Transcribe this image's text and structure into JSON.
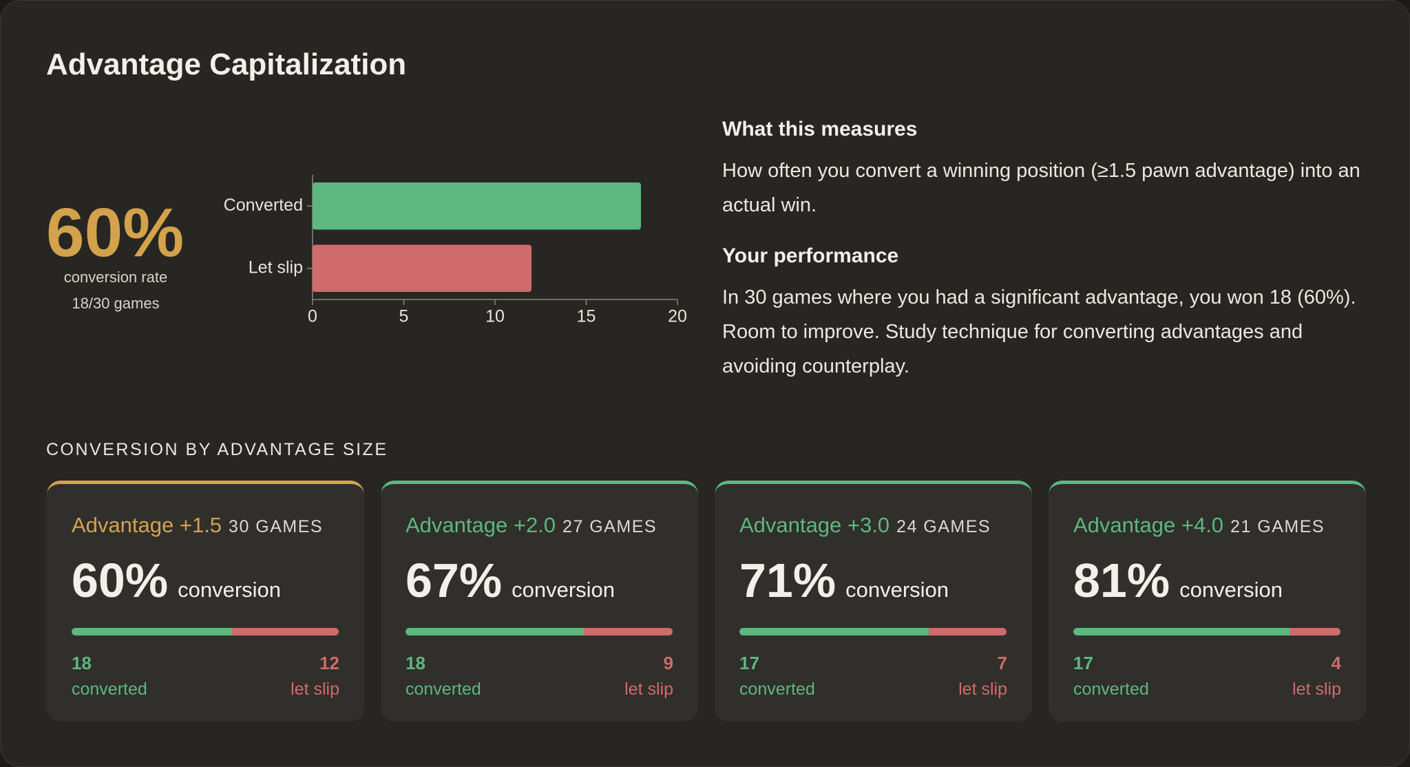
{
  "header": {
    "title": "Advantage Capitalization"
  },
  "summary": {
    "rate": "60%",
    "caption": "conversion rate",
    "detail": "18/30 games"
  },
  "chart_data": {
    "type": "bar",
    "orientation": "horizontal",
    "categories": [
      "Converted",
      "Let slip"
    ],
    "values": [
      18,
      12
    ],
    "colors": [
      "#5cb87f",
      "#d06b6b"
    ],
    "xlim": [
      0,
      20
    ],
    "xticks": [
      0,
      5,
      10,
      15,
      20
    ]
  },
  "explanation": {
    "measures_heading": "What this measures",
    "measures_text": "How often you convert a winning position (≥1.5 pawn advantage) into an actual win.",
    "performance_heading": "Your performance",
    "performance_text": "In 30 games where you had a significant advantage, you won 18 (60%). Room to improve. Study technique for converting advantages and avoiding counterplay."
  },
  "section_label": "CONVERSION BY ADVANTAGE SIZE",
  "cards": [
    {
      "label": "Advantage +1.5",
      "games": "30 GAMES",
      "rate": "60%",
      "rate_caption": "conversion",
      "converted": 18,
      "converted_label": "converted",
      "let_slip": 12,
      "let_slip_label": "let slip",
      "color": "#d4a24c"
    },
    {
      "label": "Advantage +2.0",
      "games": "27 GAMES",
      "rate": "67%",
      "rate_caption": "conversion",
      "converted": 18,
      "converted_label": "converted",
      "let_slip": 9,
      "let_slip_label": "let slip",
      "color": "#5cb87f"
    },
    {
      "label": "Advantage +3.0",
      "games": "24 GAMES",
      "rate": "71%",
      "rate_caption": "conversion",
      "converted": 17,
      "converted_label": "converted",
      "let_slip": 7,
      "let_slip_label": "let slip",
      "color": "#5cb87f"
    },
    {
      "label": "Advantage +4.0",
      "games": "21 GAMES",
      "rate": "81%",
      "rate_caption": "conversion",
      "converted": 17,
      "converted_label": "converted",
      "let_slip": 4,
      "let_slip_label": "let slip",
      "color": "#5cb87f"
    }
  ],
  "bar_colors": {
    "converted": "#5cb87f",
    "let_slip": "#d06b6b"
  }
}
